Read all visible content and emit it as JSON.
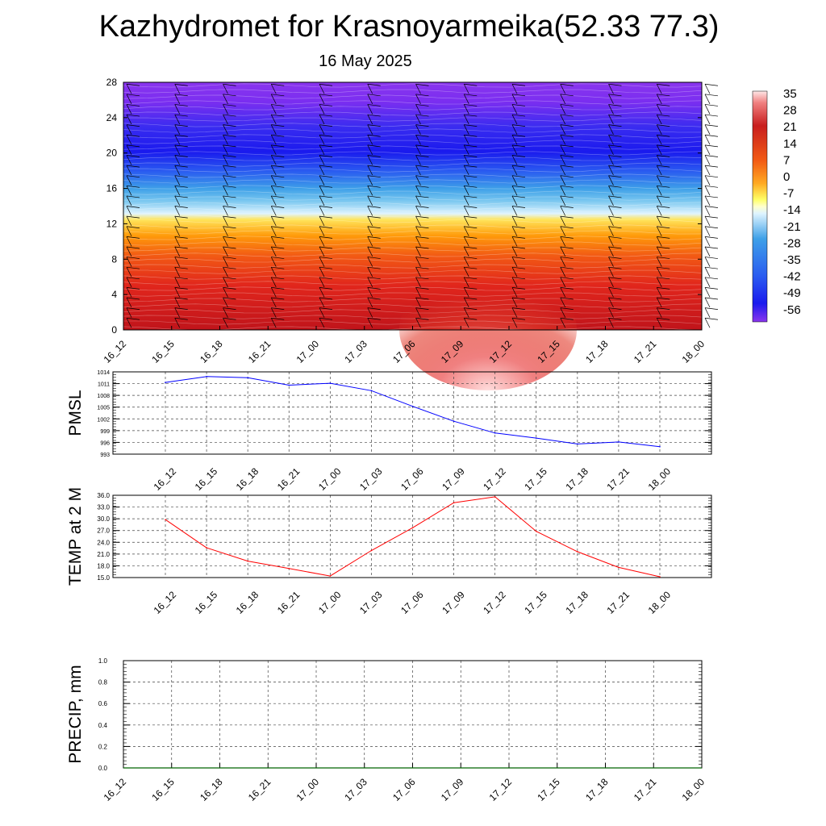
{
  "title": "Kazhydromet for Krasnoyarmeika(52.33 77.3)",
  "subtitle": "16 May 2025",
  "chart_data": [
    {
      "type": "heatmap",
      "name": "temperature cross-section",
      "x_ticks": [
        "16_12",
        "16_15",
        "16_18",
        "16_21",
        "17_00",
        "17_03",
        "17_06",
        "17_09",
        "17_12",
        "17_15",
        "17_18",
        "17_21",
        "18_00"
      ],
      "y_ticks": [
        0,
        4,
        8,
        12,
        16,
        20,
        24,
        28
      ],
      "ylim": [
        0,
        28
      ],
      "colorbar_levels": [
        35,
        28,
        21,
        14,
        7,
        0,
        -7,
        -14,
        -21,
        -28,
        -35,
        -42,
        -49,
        -56
      ],
      "colors": {
        "hot": "#c81e1e",
        "warm": "#ff8c00",
        "zero": "#ffff66",
        "cold": "#5aa0ff",
        "frost": "#1a1aff",
        "top": "#8a2be2"
      },
      "wind_barbs": true
    },
    {
      "type": "line",
      "ylabel": "PMSL",
      "x": [
        "16_12",
        "16_15",
        "16_18",
        "16_21",
        "17_00",
        "17_03",
        "17_06",
        "17_09",
        "17_12",
        "17_15",
        "17_18",
        "17_21",
        "18_00"
      ],
      "values": [
        1011.3,
        1012.8,
        1012.5,
        1010.6,
        1011.1,
        1009.2,
        1005.2,
        1001.4,
        998.4,
        997.1,
        995.6,
        996.1,
        994.9
      ],
      "yticks": [
        "1014",
        "1011",
        "1008",
        "1005",
        "1002",
        "999",
        "996",
        "993"
      ],
      "ylim": [
        993,
        1014
      ],
      "color": "#0000ff",
      "grid": true
    },
    {
      "type": "line",
      "ylabel": "TEMP at 2 M",
      "x": [
        "16_12",
        "16_15",
        "16_18",
        "16_21",
        "17_00",
        "17_03",
        "17_06",
        "17_09",
        "17_12",
        "17_15",
        "17_18",
        "17_21",
        "18_00"
      ],
      "values": [
        29.8,
        22.6,
        19.2,
        17.3,
        15.4,
        21.9,
        27.7,
        34.1,
        35.6,
        26.8,
        21.6,
        17.6,
        15.2
      ],
      "yticks": [
        "36.0",
        "33.0",
        "30.0",
        "27.0",
        "24.0",
        "21.0",
        "18.0",
        "15.0"
      ],
      "ylim": [
        15,
        36
      ],
      "color": "#ff0000",
      "grid": true
    },
    {
      "type": "line",
      "ylabel": "PRECIP, mm",
      "x": [
        "16_12",
        "16_15",
        "16_18",
        "16_21",
        "17_00",
        "17_03",
        "17_06",
        "17_09",
        "17_12",
        "17_15",
        "17_18",
        "17_21",
        "18_00"
      ],
      "values": [
        0,
        0,
        0,
        0,
        0,
        0,
        0,
        0,
        0,
        0,
        0,
        0,
        0
      ],
      "yticks": [
        "1.0",
        "0.8",
        "0.6",
        "0.4",
        "0.2",
        "0.0"
      ],
      "ylim": [
        0,
        1
      ],
      "color": "#006400",
      "grid": true
    }
  ]
}
